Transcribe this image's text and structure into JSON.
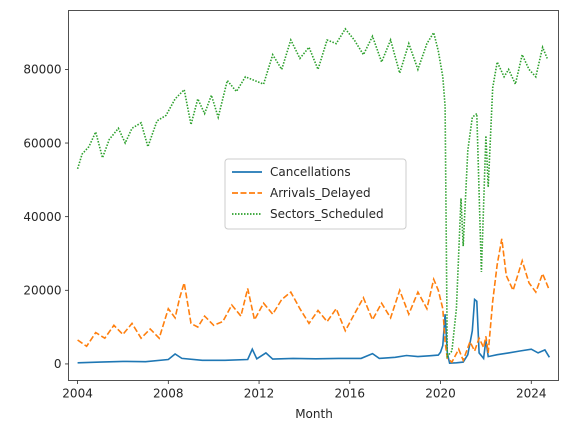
{
  "chart_data": {
    "type": "line",
    "title": "",
    "xlabel": "Month",
    "ylabel": "",
    "xlim": [
      2003.6,
      2025.2
    ],
    "ylim": [
      -4500,
      96000
    ],
    "grid": false,
    "legend_position": "center",
    "x_ticks": [
      2004,
      2008,
      2012,
      2016,
      2020,
      2024
    ],
    "x_tick_labels": [
      "2004",
      "2008",
      "2012",
      "2016",
      "2020",
      "2024"
    ],
    "y_ticks": [
      0,
      20000,
      40000,
      60000,
      80000
    ],
    "y_tick_labels": [
      "0",
      "20000",
      "40000",
      "60000",
      "80000"
    ],
    "series": [
      {
        "name": "Cancellations",
        "color": "#1f77b4",
        "style": "solid",
        "points": [
          [
            2004.0,
            300
          ],
          [
            2005.0,
            500
          ],
          [
            2006.0,
            700
          ],
          [
            2007.0,
            600
          ],
          [
            2008.0,
            1200
          ],
          [
            2008.3,
            2700
          ],
          [
            2008.6,
            1500
          ],
          [
            2009.5,
            1000
          ],
          [
            2010.5,
            1000
          ],
          [
            2011.5,
            1200
          ],
          [
            2011.7,
            4000
          ],
          [
            2011.9,
            1400
          ],
          [
            2012.3,
            3000
          ],
          [
            2012.6,
            1300
          ],
          [
            2013.5,
            1500
          ],
          [
            2014.5,
            1400
          ],
          [
            2015.5,
            1500
          ],
          [
            2016.5,
            1500
          ],
          [
            2017.0,
            2800
          ],
          [
            2017.3,
            1500
          ],
          [
            2018.0,
            1800
          ],
          [
            2018.5,
            2300
          ],
          [
            2019.0,
            2000
          ],
          [
            2019.5,
            2200
          ],
          [
            2019.9,
            2400
          ],
          [
            2020.0,
            3200
          ],
          [
            2020.1,
            5000
          ],
          [
            2020.2,
            13500
          ],
          [
            2020.3,
            3000
          ],
          [
            2020.4,
            200
          ],
          [
            2020.7,
            300
          ],
          [
            2021.0,
            500
          ],
          [
            2021.2,
            2500
          ],
          [
            2021.4,
            9000
          ],
          [
            2021.5,
            17500
          ],
          [
            2021.6,
            17000
          ],
          [
            2021.7,
            3000
          ],
          [
            2021.9,
            1500
          ],
          [
            2022.0,
            6500
          ],
          [
            2022.1,
            2000
          ],
          [
            2022.5,
            2500
          ],
          [
            2023.0,
            3000
          ],
          [
            2023.5,
            3500
          ],
          [
            2024.0,
            4000
          ],
          [
            2024.3,
            3000
          ],
          [
            2024.6,
            3800
          ],
          [
            2024.8,
            1800
          ]
        ]
      },
      {
        "name": "Arrivals_Delayed",
        "color": "#ff7f0e",
        "style": "dashed",
        "points": [
          [
            2004.0,
            6500
          ],
          [
            2004.4,
            4800
          ],
          [
            2004.8,
            8500
          ],
          [
            2005.2,
            7000
          ],
          [
            2005.6,
            10500
          ],
          [
            2006.0,
            8000
          ],
          [
            2006.4,
            11000
          ],
          [
            2006.8,
            7000
          ],
          [
            2007.2,
            9500
          ],
          [
            2007.6,
            7000
          ],
          [
            2008.0,
            15000
          ],
          [
            2008.3,
            12500
          ],
          [
            2008.5,
            18000
          ],
          [
            2008.7,
            22000
          ],
          [
            2009.0,
            11000
          ],
          [
            2009.3,
            10000
          ],
          [
            2009.6,
            13000
          ],
          [
            2010.0,
            10500
          ],
          [
            2010.4,
            11500
          ],
          [
            2010.8,
            16000
          ],
          [
            2011.2,
            13000
          ],
          [
            2011.5,
            20500
          ],
          [
            2011.8,
            12000
          ],
          [
            2012.2,
            16500
          ],
          [
            2012.6,
            13500
          ],
          [
            2013.0,
            17500
          ],
          [
            2013.4,
            19500
          ],
          [
            2013.8,
            15000
          ],
          [
            2014.2,
            11000
          ],
          [
            2014.6,
            14500
          ],
          [
            2015.0,
            11500
          ],
          [
            2015.4,
            15000
          ],
          [
            2015.8,
            9000
          ],
          [
            2016.2,
            13500
          ],
          [
            2016.6,
            18000
          ],
          [
            2017.0,
            12000
          ],
          [
            2017.4,
            16500
          ],
          [
            2017.8,
            12500
          ],
          [
            2018.2,
            20000
          ],
          [
            2018.6,
            13500
          ],
          [
            2019.0,
            19500
          ],
          [
            2019.4,
            15000
          ],
          [
            2019.7,
            23000
          ],
          [
            2019.9,
            20000
          ],
          [
            2020.1,
            15000
          ],
          [
            2020.2,
            6000
          ],
          [
            2020.3,
            1500
          ],
          [
            2020.5,
            500
          ],
          [
            2020.8,
            4000
          ],
          [
            2021.0,
            1000
          ],
          [
            2021.3,
            6000
          ],
          [
            2021.5,
            3500
          ],
          [
            2021.7,
            7000
          ],
          [
            2021.9,
            4500
          ],
          [
            2022.0,
            7500
          ],
          [
            2022.1,
            3000
          ],
          [
            2022.3,
            17000
          ],
          [
            2022.5,
            27000
          ],
          [
            2022.7,
            34000
          ],
          [
            2022.9,
            24000
          ],
          [
            2023.2,
            20000
          ],
          [
            2023.6,
            28000
          ],
          [
            2023.9,
            22000
          ],
          [
            2024.2,
            19500
          ],
          [
            2024.5,
            24500
          ],
          [
            2024.8,
            20000
          ]
        ]
      },
      {
        "name": "Sectors_Scheduled",
        "color": "#2ca02c",
        "style": "dotted",
        "points": [
          [
            2004.0,
            53000
          ],
          [
            2004.2,
            57000
          ],
          [
            2004.5,
            59000
          ],
          [
            2004.8,
            63000
          ],
          [
            2005.1,
            56000
          ],
          [
            2005.4,
            61000
          ],
          [
            2005.8,
            64000
          ],
          [
            2006.1,
            60000
          ],
          [
            2006.4,
            64000
          ],
          [
            2006.8,
            65500
          ],
          [
            2007.1,
            59000
          ],
          [
            2007.5,
            66000
          ],
          [
            2007.9,
            67500
          ],
          [
            2008.3,
            72000
          ],
          [
            2008.7,
            74500
          ],
          [
            2009.0,
            65000
          ],
          [
            2009.3,
            72000
          ],
          [
            2009.6,
            68000
          ],
          [
            2009.9,
            73000
          ],
          [
            2010.2,
            67000
          ],
          [
            2010.6,
            77000
          ],
          [
            2011.0,
            74000
          ],
          [
            2011.4,
            78000
          ],
          [
            2011.8,
            77000
          ],
          [
            2012.2,
            76000
          ],
          [
            2012.6,
            84000
          ],
          [
            2013.0,
            80000
          ],
          [
            2013.4,
            88000
          ],
          [
            2013.8,
            83000
          ],
          [
            2014.2,
            86000
          ],
          [
            2014.6,
            80000
          ],
          [
            2015.0,
            88000
          ],
          [
            2015.4,
            87000
          ],
          [
            2015.8,
            91000
          ],
          [
            2016.2,
            88000
          ],
          [
            2016.6,
            84000
          ],
          [
            2017.0,
            89000
          ],
          [
            2017.4,
            82000
          ],
          [
            2017.8,
            88000
          ],
          [
            2018.2,
            79000
          ],
          [
            2018.6,
            87000
          ],
          [
            2019.0,
            80000
          ],
          [
            2019.4,
            87000
          ],
          [
            2019.7,
            90000
          ],
          [
            2019.9,
            85000
          ],
          [
            2020.1,
            78000
          ],
          [
            2020.2,
            70000
          ],
          [
            2020.3,
            2000
          ],
          [
            2020.5,
            3500
          ],
          [
            2020.7,
            15000
          ],
          [
            2020.9,
            45000
          ],
          [
            2021.0,
            32000
          ],
          [
            2021.2,
            58000
          ],
          [
            2021.4,
            67000
          ],
          [
            2021.6,
            68000
          ],
          [
            2021.8,
            25000
          ],
          [
            2022.0,
            62000
          ],
          [
            2022.1,
            48000
          ],
          [
            2022.3,
            75000
          ],
          [
            2022.5,
            82000
          ],
          [
            2022.8,
            78000
          ],
          [
            2023.0,
            80000
          ],
          [
            2023.3,
            76000
          ],
          [
            2023.6,
            84000
          ],
          [
            2023.9,
            80000
          ],
          [
            2024.2,
            78000
          ],
          [
            2024.5,
            86000
          ],
          [
            2024.7,
            83000
          ]
        ]
      }
    ]
  }
}
